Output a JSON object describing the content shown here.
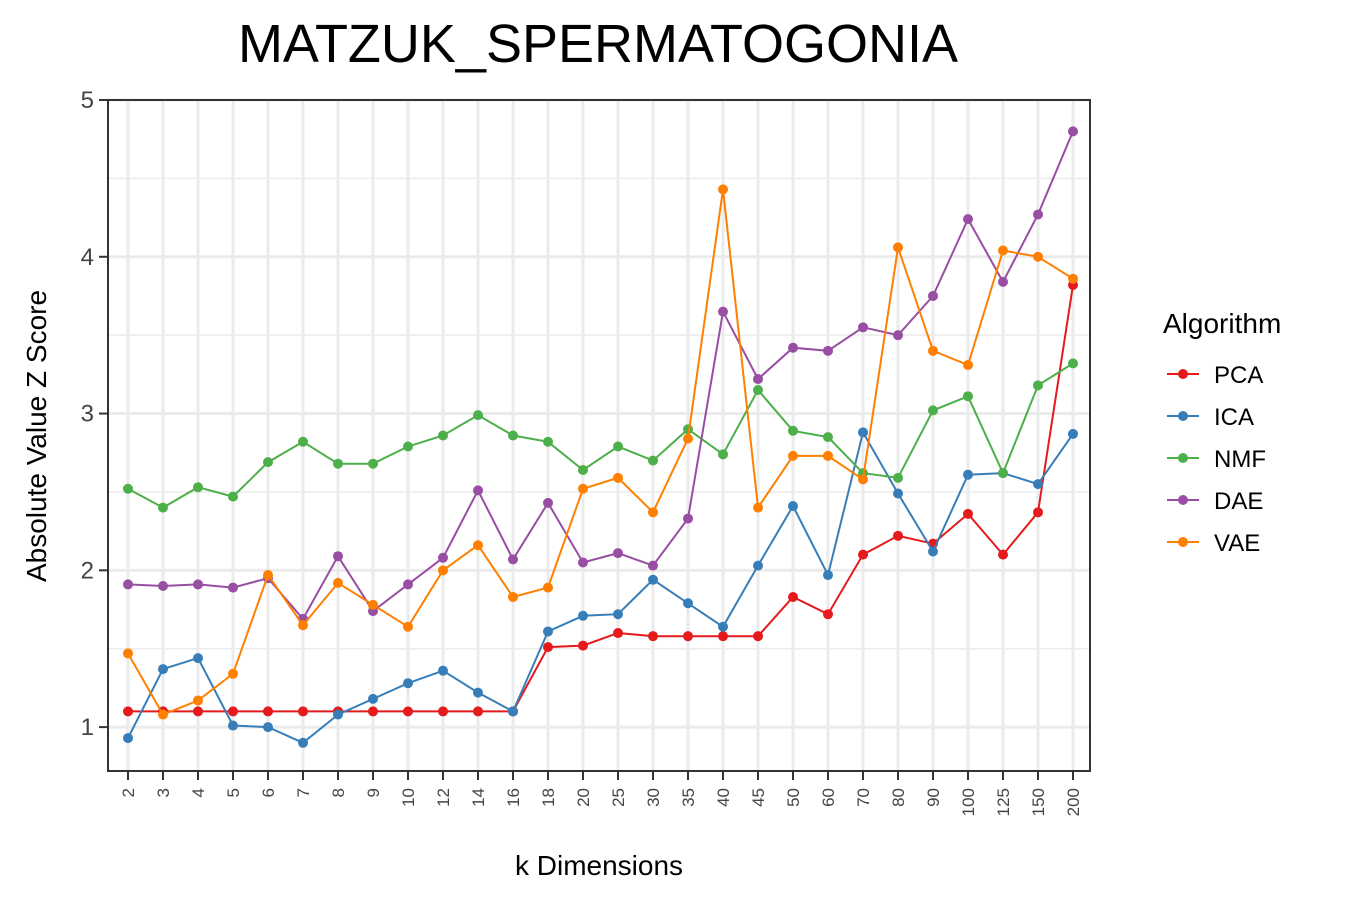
{
  "chart_data": {
    "type": "line",
    "title": "MATZUK_SPERMATOGONIA",
    "xlabel": "k Dimensions",
    "ylabel": "Absolute Value Z Score",
    "ylim": [
      0.72,
      5
    ],
    "yticks": [
      "1",
      "2",
      "3",
      "4",
      "5"
    ],
    "grid": true,
    "legend_title": "Algorithm",
    "legend_position": "right",
    "categories": [
      "2",
      "3",
      "4",
      "5",
      "6",
      "7",
      "8",
      "9",
      "10",
      "12",
      "14",
      "16",
      "18",
      "20",
      "25",
      "30",
      "35",
      "40",
      "45",
      "50",
      "60",
      "70",
      "80",
      "90",
      "100",
      "125",
      "150",
      "200"
    ],
    "series": [
      {
        "name": "PCA",
        "color": "#e41a1c",
        "values": [
          1.1,
          1.1,
          1.1,
          1.1,
          1.1,
          1.1,
          1.1,
          1.1,
          1.1,
          1.1,
          1.1,
          1.1,
          1.51,
          1.52,
          1.6,
          1.58,
          1.58,
          1.58,
          1.58,
          1.83,
          1.72,
          2.1,
          2.22,
          2.17,
          2.36,
          2.1,
          2.37,
          3.82
        ]
      },
      {
        "name": "ICA",
        "color": "#377eb8",
        "values": [
          0.93,
          1.37,
          1.44,
          1.01,
          1.0,
          0.9,
          1.08,
          1.18,
          1.28,
          1.36,
          1.22,
          1.1,
          1.61,
          1.71,
          1.72,
          1.94,
          1.79,
          1.64,
          2.03,
          2.41,
          1.97,
          2.88,
          2.49,
          2.12,
          2.61,
          2.62,
          2.55,
          2.87
        ]
      },
      {
        "name": "NMF",
        "color": "#4daf4a",
        "values": [
          2.52,
          2.4,
          2.53,
          2.47,
          2.69,
          2.82,
          2.68,
          2.68,
          2.79,
          2.86,
          2.99,
          2.86,
          2.82,
          2.64,
          2.79,
          2.7,
          2.9,
          2.74,
          3.15,
          2.89,
          2.85,
          2.62,
          2.59,
          3.02,
          3.11,
          2.62,
          3.18,
          3.32
        ]
      },
      {
        "name": "DAE",
        "color": "#984ea3",
        "values": [
          1.91,
          1.9,
          1.91,
          1.89,
          1.95,
          1.69,
          2.09,
          1.74,
          1.91,
          2.08,
          2.51,
          2.07,
          2.43,
          2.05,
          2.11,
          2.03,
          2.33,
          3.65,
          3.22,
          3.42,
          3.4,
          3.55,
          3.5,
          3.75,
          4.24,
          3.84,
          4.27,
          4.8
        ]
      },
      {
        "name": "VAE",
        "color": "#ff7f00",
        "values": [
          1.47,
          1.08,
          1.17,
          1.34,
          1.97,
          1.65,
          1.92,
          1.78,
          1.64,
          2.0,
          2.16,
          1.83,
          1.89,
          2.52,
          2.59,
          2.37,
          2.84,
          4.43,
          2.4,
          2.73,
          2.73,
          2.58,
          4.06,
          3.4,
          3.31,
          4.04,
          4.0,
          3.86
        ]
      }
    ]
  }
}
